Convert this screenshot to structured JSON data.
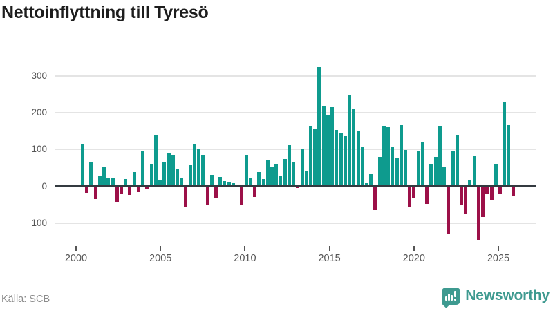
{
  "title": "Nettoinflyttning till Tyresö",
  "footer": {
    "source": "Källa: SCB",
    "brand": "Newsworthy"
  },
  "colors": {
    "positive": "#0e9b8e",
    "negative": "#9c1048",
    "grid": "#e4e4e4",
    "zero_line": "#343a40",
    "axis_text": "#565656",
    "title_text": "#1d1d1d",
    "source_text": "#8c8c8c",
    "brand_teal": "#3e9a90"
  },
  "chart_data": {
    "type": "bar",
    "title": "Nettoinflyttning till Tyresö",
    "xlabel": "",
    "ylabel": "",
    "ylim": [
      -160,
      345
    ],
    "yticks": [
      300,
      200,
      100,
      0,
      -100
    ],
    "xticks": [
      2000,
      2005,
      2010,
      2015,
      2020,
      2025
    ],
    "grid": true,
    "legend": false,
    "x": [
      "2000K2",
      "2000K3",
      "2000K4",
      "2001K1",
      "2001K2",
      "2001K3",
      "2001K4",
      "2002K1",
      "2002K2",
      "2002K3",
      "2002K4",
      "2003K1",
      "2003K2",
      "2003K3",
      "2003K4",
      "2004K1",
      "2004K2",
      "2004K3",
      "2004K4",
      "2005K1",
      "2005K2",
      "2005K3",
      "2005K4",
      "2006K1",
      "2006K2",
      "2006K3",
      "2006K4",
      "2007K1",
      "2007K2",
      "2007K3",
      "2007K4",
      "2008K1",
      "2008K2",
      "2008K3",
      "2008K4",
      "2009K1",
      "2009K2",
      "2009K3",
      "2009K4",
      "2010K1",
      "2010K2",
      "2010K3",
      "2010K4",
      "2011K1",
      "2011K2",
      "2011K3",
      "2011K4",
      "2012K1",
      "2012K2",
      "2012K3",
      "2012K4",
      "2013K1",
      "2013K2",
      "2013K3",
      "2013K4",
      "2014K1",
      "2014K2",
      "2014K3",
      "2014K4",
      "2015K1",
      "2015K2",
      "2015K3",
      "2015K4",
      "2016K1",
      "2016K2",
      "2016K3",
      "2016K4",
      "2017K1",
      "2017K2",
      "2017K3",
      "2017K4",
      "2018K1",
      "2018K2",
      "2018K3",
      "2018K4",
      "2019K1",
      "2019K2",
      "2019K3",
      "2019K4",
      "2020K1",
      "2020K2",
      "2020K3",
      "2020K4",
      "2021K1",
      "2021K2",
      "2021K3",
      "2021K4",
      "2022K1",
      "2022K2",
      "2022K3",
      "2022K4",
      "2023K1",
      "2023K2",
      "2023K3",
      "2023K4",
      "2024K1",
      "2024K2",
      "2024K3",
      "2024K4",
      "2025K1",
      "2025K2"
    ],
    "values": [
      113,
      -18,
      64,
      -34,
      28,
      53,
      24,
      24,
      -42,
      -19,
      20,
      -23,
      39,
      -16,
      94,
      -6,
      62,
      139,
      17,
      64,
      92,
      86,
      48,
      23,
      -55,
      58,
      114,
      101,
      86,
      -52,
      31,
      -33,
      25,
      14,
      11,
      8,
      5,
      -49,
      86,
      24,
      -30,
      39,
      19,
      73,
      51,
      59,
      29,
      74,
      111,
      64,
      -5,
      102,
      42,
      164,
      155,
      325,
      218,
      195,
      215,
      153,
      145,
      136,
      247,
      212,
      152,
      107,
      9,
      32,
      -64,
      80,
      165,
      160,
      107,
      78,
      166,
      98,
      -58,
      -32,
      94,
      121,
      -48,
      61,
      80,
      163,
      52,
      -128,
      94,
      139,
      -50,
      -76,
      16,
      81,
      -145,
      -84,
      -22,
      -38,
      59,
      -22,
      228,
      166,
      -26
    ]
  }
}
